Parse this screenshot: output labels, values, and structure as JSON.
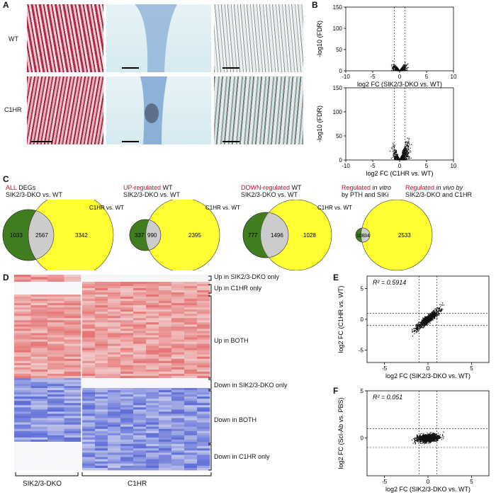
{
  "panels": {
    "A": "A",
    "B": "B",
    "C": "C",
    "D": "D",
    "E": "E",
    "F": "F"
  },
  "panel_a": {
    "row_wt": "WT",
    "row_c1hr": "C1HR"
  },
  "venn": [
    {
      "title_red": "ALL",
      "title_black": " DEGs",
      "subtitle": "SIK2/3-DKO vs. WT",
      "right_label": "C1HR vs. WT",
      "left_only": "1033",
      "overlap": "2567",
      "right_only": "3342"
    },
    {
      "title_red": "UP-regulated",
      "title_black": " WT",
      "subtitle": "SIK2/3-DKO vs. WT",
      "right_label": "C1HR vs. WT",
      "left_only": "337",
      "overlap": "990",
      "right_only": "2395"
    },
    {
      "title_red": "DOWN-regulated",
      "title_black": " WT",
      "subtitle": "SIK2/3-DKO vs. WT",
      "right_label": "C1HR vs. WT",
      "left_only": "777",
      "overlap": "1496",
      "right_only": "1028"
    },
    {
      "title_red": "Regulated",
      "title_black": " in vitro",
      "subtitle": "by PTH and SIKi",
      "left_only": "108",
      "overlap": "34",
      "right_only": "2533"
    }
  ],
  "venn4_right_title": {
    "red": "Regulated",
    "black": " in vivo by",
    "line2": "SIK2/3-DKO and C1HR"
  },
  "heatmap": {
    "labels": [
      "Up in SIK2/3-DKO only",
      "Up in C1HR only",
      "Up in BOTH",
      "Down in SIK2/3-DKO only",
      "Down in BOTH",
      "Down in C1HR only"
    ],
    "group_left": "SIK2/3-DKO",
    "group_right": "C1HR",
    "colors": {
      "up": "#e57373",
      "down": "#5c6bd6",
      "neutral": "#f7f7fb"
    }
  },
  "chart_data": [
    {
      "type": "scatter",
      "name": "volcano-sik",
      "xlabel": "log2 FC (SIK2/3-DKO vs. WT)",
      "ylabel": "-log10 (FDR)",
      "xlim": [
        -10,
        10
      ],
      "ylim": [
        0,
        150
      ],
      "xticks": [
        -10,
        -5,
        0,
        5,
        10
      ],
      "yticks": [
        0,
        50,
        100,
        150
      ],
      "vlines": [
        -1,
        1
      ]
    },
    {
      "type": "scatter",
      "name": "volcano-c1hr",
      "xlabel": "log2 FC (C1HR vs. WT)",
      "ylabel": "-log10 (FDR)",
      "xlim": [
        -10,
        10
      ],
      "ylim": [
        0,
        150
      ],
      "xticks": [
        -10,
        -5,
        0,
        5,
        10
      ],
      "yticks": [
        0,
        50,
        100,
        150
      ],
      "vlines": [
        -1,
        1
      ]
    },
    {
      "type": "scatter",
      "name": "corr-e",
      "annotation": "R² = 0.5914",
      "xlabel": "log2 FC (SIK2/3-DKO vs. WT)",
      "ylabel": "log2 FC (C1HR vs. WT)",
      "xlim": [
        -7,
        7
      ],
      "ylim": [
        -7,
        7
      ],
      "xticks": [
        -5,
        0,
        5
      ],
      "yticks": [
        -5,
        0,
        5
      ],
      "refs": [
        -1,
        1
      ]
    },
    {
      "type": "scatter",
      "name": "corr-f",
      "annotation": "R² = 0.051",
      "xlabel": "log2 FC (SIK2/3-DKO vs. WT)",
      "ylabel": "log2 FC (Scl-Ab vs. PBS)",
      "xlim": [
        -7,
        7
      ],
      "ylim": [
        -4,
        5
      ],
      "xticks": [
        -5,
        0,
        5
      ],
      "yticks": [
        -5,
        0,
        5
      ],
      "refs": [
        -1,
        1
      ]
    }
  ]
}
